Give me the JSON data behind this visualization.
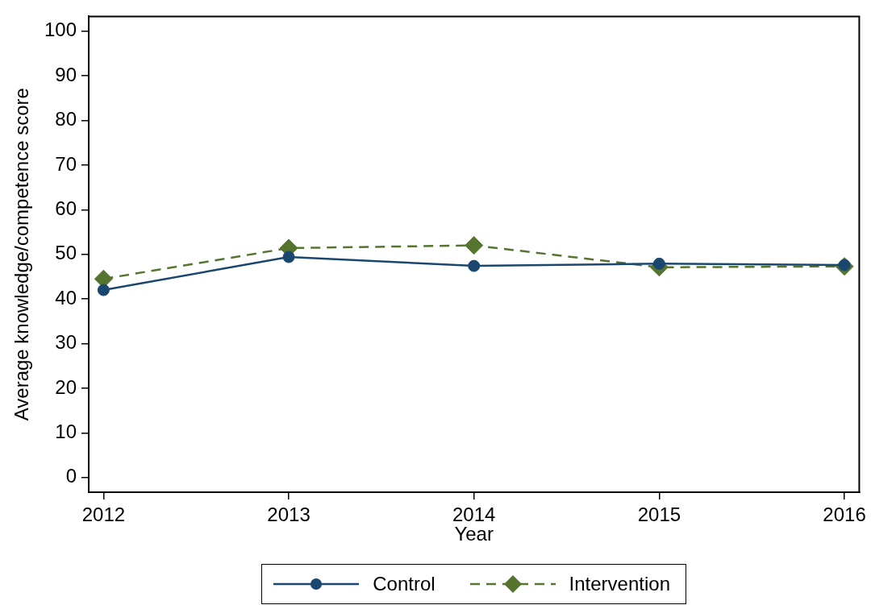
{
  "chart_data": {
    "type": "line",
    "xlabel": "Year",
    "ylabel": "Average knowledge/competence score",
    "x": [
      2012,
      2013,
      2014,
      2015,
      2016
    ],
    "xlim": [
      2011.92,
      2016.08
    ],
    "xticks": [
      2012,
      2013,
      2014,
      2015,
      2016
    ],
    "ylim": [
      -3.3,
      103.3
    ],
    "yticks": [
      0,
      10,
      20,
      30,
      40,
      50,
      60,
      70,
      80,
      90,
      100
    ],
    "grid": false,
    "legend": "bottom",
    "series": [
      {
        "name": "Control",
        "color": "#1a476f",
        "values": [
          42.0,
          49.4,
          47.4,
          47.9,
          47.6
        ],
        "marker": "circle",
        "line_style": "solid"
      },
      {
        "name": "Intervention",
        "color": "#55752f",
        "values": [
          44.5,
          51.4,
          52.0,
          47.1,
          47.3
        ],
        "marker": "diamond",
        "line_style": "dashed"
      }
    ]
  }
}
